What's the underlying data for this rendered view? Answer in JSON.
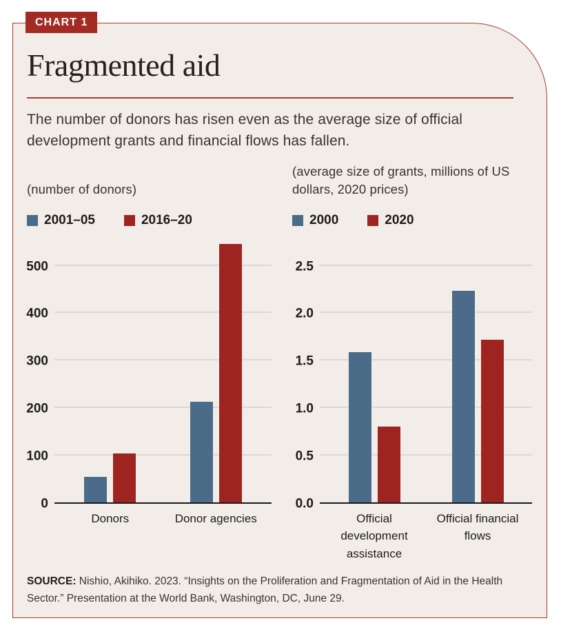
{
  "header": {
    "badge": "CHART 1",
    "title": "Fragmented aid",
    "subtitle": "The number of donors has risen even as the average size of official development grants and financial flows has fallen."
  },
  "colors": {
    "page_bg": "#ffffff",
    "card_bg": "#f2ede8",
    "border_red": "#a93a31",
    "badge_bg": "#a32b23",
    "bar_blue": "#4a6c89",
    "bar_red": "#9d2421",
    "gridline": "#dcd7d2",
    "baseline": "#1a1a1a"
  },
  "chart_data": [
    {
      "type": "bar",
      "title": "(number of donors)",
      "categories": [
        "Donors",
        "Donor agencies"
      ],
      "series": [
        {
          "name": "2001–05",
          "color": "bar_blue",
          "values": [
            53,
            212
          ]
        },
        {
          "name": "2016–20",
          "color": "bar_red",
          "values": [
            103,
            545
          ]
        }
      ],
      "ylim": [
        0,
        550
      ],
      "ytick_values": [
        0,
        100,
        200,
        300,
        400,
        500
      ],
      "ytick_labels": [
        "0",
        "100",
        "200",
        "300",
        "400",
        "500"
      ],
      "grid": true,
      "legend_position": "top-left"
    },
    {
      "type": "bar",
      "title": "(average size of grants, millions of US dollars, 2020 prices)",
      "categories": [
        "Official development assistance",
        "Official financial flows"
      ],
      "series": [
        {
          "name": "2000",
          "color": "bar_blue",
          "values": [
            1.58,
            2.23
          ]
        },
        {
          "name": "2020",
          "color": "bar_red",
          "values": [
            0.8,
            1.71
          ]
        }
      ],
      "ylim": [
        0,
        2.5
      ],
      "ytick_values": [
        0,
        0.5,
        1.0,
        1.5,
        2.0,
        2.5
      ],
      "ytick_labels": [
        "0.0",
        "0.5",
        "1.0",
        "1.5",
        "2.0",
        "2.5"
      ],
      "grid": true,
      "legend_position": "top-left"
    }
  ],
  "source": {
    "prefix": "SOURCE:",
    "text": " Nishio, Akihiko. 2023. “Insights on the Proliferation and Fragmentation of Aid in the Health Sector.” Presentation at the World Bank, Washington, DC, June 29."
  }
}
